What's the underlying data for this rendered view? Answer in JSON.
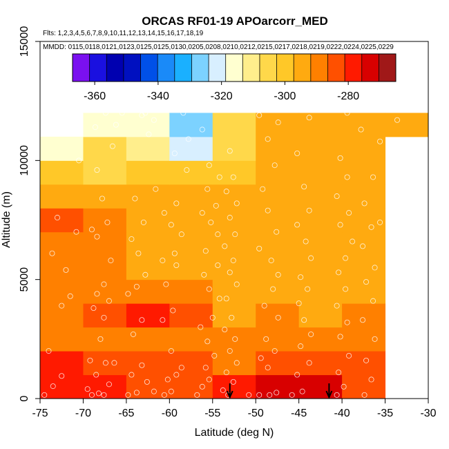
{
  "chart_data": {
    "type": "heatmap",
    "title": "ORCAS RF01-19 APOarcorr_MED",
    "flights_text": "Flts: 1,2,3,4,5,6,7,8,9,10,11,12,13,14,15,16,17,18,19",
    "dates_text": "MMDD: 0115,0118,0121,0123,0125,0125,0130,0205,0208,0210,0212,0215,0217,0218,0219,0222,0224,0225,0229",
    "xlabel": "Latitude (deg N)",
    "ylabel": "Altitude (m)",
    "xlim": [
      -75,
      -30
    ],
    "ylim": [
      0,
      15000
    ],
    "x_ticks": [
      -75,
      -70,
      -65,
      -60,
      -55,
      -50,
      -45,
      -40,
      -35,
      -30
    ],
    "y_ticks": [
      0,
      5000,
      10000,
      15000
    ],
    "colorbar": {
      "range": [
        -367,
        -265
      ],
      "ticks": [
        -360,
        -340,
        -320,
        -300,
        -280
      ],
      "colors": [
        "#7a10f0",
        "#1a10e0",
        "#0000b0",
        "#0010c0",
        "#0050e8",
        "#1a8af8",
        "#1ab0ff",
        "#7cd2ff",
        "#d8efff",
        "#ffffd0",
        "#ffee8c",
        "#ffd84a",
        "#ffc828",
        "#ffaa10",
        "#ff8000",
        "#ff5000",
        "#ff1a00",
        "#d80000",
        "#a01818"
      ]
    },
    "lat_edges": [
      -75,
      -70,
      -65,
      -60,
      -55,
      -50,
      -45,
      -40,
      -35,
      -30
    ],
    "alt_edges": [
      0,
      1000,
      2000,
      3000,
      4000,
      5000,
      6000,
      7000,
      8000,
      9000,
      10000,
      11000,
      12000
    ],
    "cells": [
      [
        -280,
        -280,
        -283,
        -285,
        -276,
        -273,
        -275,
        -284,
        null
      ],
      [
        -279,
        -283,
        -284,
        -285,
        -287,
        -285,
        -286,
        -286,
        null
      ],
      [
        -289,
        -289,
        -288,
        -289,
        -288,
        -288,
        -289,
        -289,
        null
      ],
      [
        -288,
        -285,
        -279,
        -284,
        -292,
        -290,
        -292,
        -289,
        null
      ],
      [
        -289,
        -290,
        -291,
        -291,
        -292,
        -294,
        -294,
        -294,
        null
      ],
      [
        -290,
        -291,
        -292,
        -292,
        -293,
        -294,
        -294,
        -294,
        null
      ],
      [
        -290,
        -291,
        -292,
        -292,
        -294,
        -294,
        -294,
        -294,
        null
      ],
      [
        -285,
        -291,
        -292,
        -293,
        -295,
        -294,
        -294,
        -292,
        null
      ],
      [
        -292,
        -293,
        -294,
        -294,
        -296,
        -294,
        -294,
        -294,
        null
      ],
      [
        -301,
        -304,
        -298,
        -298,
        -298,
        -294,
        -292,
        -294,
        null
      ],
      [
        -316,
        -304,
        -310,
        -320,
        -305,
        -292,
        -293,
        -294,
        null
      ],
      [
        null,
        -316,
        -316,
        -325,
        -305,
        -294,
        -294,
        -294,
        -294
      ]
    ],
    "arrows_lat": [
      -53,
      -41.5
    ],
    "points": [
      [
        -74.5,
        150
      ],
      [
        -73.5,
        520
      ],
      [
        -72.5,
        950
      ],
      [
        -74,
        2000
      ],
      [
        -72.5,
        3900
      ],
      [
        -71.5,
        4300
      ],
      [
        -72,
        5400
      ],
      [
        -73.6,
        6100
      ],
      [
        -70.8,
        7000
      ],
      [
        -73,
        7600
      ],
      [
        -70.5,
        10000
      ],
      [
        -69.5,
        400
      ],
      [
        -69,
        150
      ],
      [
        -68.2,
        220
      ],
      [
        -67.6,
        150
      ],
      [
        -67,
        600
      ],
      [
        -68.5,
        1000
      ],
      [
        -69.2,
        1600
      ],
      [
        -67.4,
        1500
      ],
      [
        -66.4,
        1500
      ],
      [
        -68,
        2500
      ],
      [
        -67.6,
        3400
      ],
      [
        -68.8,
        3800
      ],
      [
        -67,
        4100
      ],
      [
        -68.4,
        4400
      ],
      [
        -67.6,
        4800
      ],
      [
        -66.8,
        5800
      ],
      [
        -68.4,
        6800
      ],
      [
        -69,
        7100
      ],
      [
        -67.2,
        7400
      ],
      [
        -67.8,
        8400
      ],
      [
        -68.4,
        9600
      ],
      [
        -66.6,
        10600
      ],
      [
        -67.4,
        12000
      ],
      [
        -68.6,
        11400
      ],
      [
        -66.2,
        11500
      ],
      [
        -64.8,
        150
      ],
      [
        -63.8,
        250
      ],
      [
        -64.4,
        1000
      ],
      [
        -63.2,
        1400
      ],
      [
        -62.6,
        700
      ],
      [
        -61.8,
        300
      ],
      [
        -64.2,
        2700
      ],
      [
        -63.2,
        3300
      ],
      [
        -64.8,
        4400
      ],
      [
        -63.8,
        4700
      ],
      [
        -62.8,
        5200
      ],
      [
        -63.6,
        6100
      ],
      [
        -64.4,
        6700
      ],
      [
        -63,
        7400
      ],
      [
        -64,
        8400
      ],
      [
        -61.6,
        8800
      ],
      [
        -62.4,
        11100
      ],
      [
        -61.8,
        11700
      ],
      [
        -63.2,
        11900
      ],
      [
        -62.8,
        12000
      ],
      [
        -65.5,
        12000
      ],
      [
        -60.6,
        150
      ],
      [
        -59.8,
        300
      ],
      [
        -60.2,
        800
      ],
      [
        -59.2,
        1000
      ],
      [
        -58.6,
        1300
      ],
      [
        -59.8,
        2000
      ],
      [
        -60.8,
        3300
      ],
      [
        -59.6,
        3700
      ],
      [
        -60.4,
        4800
      ],
      [
        -59.2,
        5600
      ],
      [
        -60.8,
        5800
      ],
      [
        -59.4,
        6100
      ],
      [
        -58.6,
        6900
      ],
      [
        -59.8,
        7300
      ],
      [
        -60.6,
        7800
      ],
      [
        -59.2,
        8200
      ],
      [
        -58,
        9600
      ],
      [
        -59.4,
        10300
      ],
      [
        -57.8,
        10900
      ],
      [
        -58.4,
        12000
      ],
      [
        -56.8,
        150
      ],
      [
        -56.2,
        500
      ],
      [
        -55.4,
        800
      ],
      [
        -55.8,
        1300
      ],
      [
        -54.8,
        1800
      ],
      [
        -55.6,
        2400
      ],
      [
        -56.4,
        3000
      ],
      [
        -55,
        3400
      ],
      [
        -54.2,
        4200
      ],
      [
        -55.4,
        4600
      ],
      [
        -56,
        5200
      ],
      [
        -54.4,
        5600
      ],
      [
        -55.8,
        6200
      ],
      [
        -54.4,
        6900
      ],
      [
        -55.2,
        7400
      ],
      [
        -56.2,
        7800
      ],
      [
        -54.6,
        8100
      ],
      [
        -55.6,
        8800
      ],
      [
        -54.2,
        9300
      ],
      [
        -55.4,
        9800
      ],
      [
        -56.2,
        11300
      ],
      [
        -53.8,
        350
      ],
      [
        -53.2,
        150
      ],
      [
        -52.6,
        700
      ],
      [
        -53.4,
        1100
      ],
      [
        -52.2,
        1500
      ],
      [
        -53,
        2000
      ],
      [
        -52.4,
        2500
      ],
      [
        -53.6,
        2900
      ],
      [
        -52.8,
        3400
      ],
      [
        -53.4,
        4200
      ],
      [
        -52.2,
        4800
      ],
      [
        -53,
        5300
      ],
      [
        -52.6,
        5800
      ],
      [
        -53.6,
        6400
      ],
      [
        -52.4,
        6900
      ],
      [
        -53,
        7600
      ],
      [
        -52.2,
        8200
      ],
      [
        -53.4,
        8700
      ],
      [
        -52.6,
        9300
      ],
      [
        -53,
        10400
      ],
      [
        -50.8,
        150
      ],
      [
        -49.6,
        150
      ],
      [
        -48.4,
        150
      ],
      [
        -47.6,
        250
      ],
      [
        -49.4,
        1700
      ],
      [
        -48.6,
        1300
      ],
      [
        -47.8,
        2000
      ],
      [
        -48.8,
        2500
      ],
      [
        -47.4,
        3400
      ],
      [
        -49,
        3900
      ],
      [
        -48,
        4600
      ],
      [
        -47.4,
        5200
      ],
      [
        -48.2,
        5800
      ],
      [
        -49.6,
        6300
      ],
      [
        -47.6,
        7000
      ],
      [
        -48.6,
        7900
      ],
      [
        -49.2,
        8800
      ],
      [
        -47.8,
        9800
      ],
      [
        -48.6,
        10900
      ],
      [
        -47.4,
        11600
      ],
      [
        -49.6,
        11900
      ],
      [
        -45.8,
        150
      ],
      [
        -44.6,
        300
      ],
      [
        -45.2,
        1000
      ],
      [
        -43.8,
        1500
      ],
      [
        -44.8,
        2200
      ],
      [
        -43.6,
        2700
      ],
      [
        -44.4,
        3300
      ],
      [
        -45,
        4000
      ],
      [
        -44,
        4600
      ],
      [
        -44.8,
        5100
      ],
      [
        -43.6,
        5900
      ],
      [
        -44.2,
        6600
      ],
      [
        -45.2,
        7300
      ],
      [
        -43.8,
        7900
      ],
      [
        -44.4,
        8900
      ],
      [
        -45.2,
        10300
      ],
      [
        -43.8,
        11800
      ],
      [
        -40.6,
        150
      ],
      [
        -39.8,
        500
      ],
      [
        -40.4,
        1100
      ],
      [
        -39.2,
        1800
      ],
      [
        -40.2,
        2600
      ],
      [
        -39.4,
        3200
      ],
      [
        -40.6,
        3900
      ],
      [
        -39.6,
        4600
      ],
      [
        -40.4,
        5300
      ],
      [
        -39.6,
        5900
      ],
      [
        -38.8,
        6600
      ],
      [
        -40.2,
        7300
      ],
      [
        -39.2,
        7800
      ],
      [
        -40.6,
        8500
      ],
      [
        -39.4,
        9300
      ],
      [
        -40.2,
        10100
      ],
      [
        -39.4,
        12000
      ],
      [
        -37.4,
        150
      ],
      [
        -36.6,
        800
      ],
      [
        -37.2,
        1600
      ],
      [
        -36.2,
        2500
      ],
      [
        -37.6,
        3300
      ],
      [
        -36.4,
        4100
      ],
      [
        -37.2,
        4900
      ],
      [
        -36.2,
        5500
      ],
      [
        -37.6,
        6400
      ],
      [
        -36.6,
        7200
      ],
      [
        -35.6,
        7400
      ],
      [
        -37.4,
        8200
      ],
      [
        -36.4,
        9300
      ],
      [
        -35.6,
        10800
      ],
      [
        -33.6,
        11700
      ],
      [
        -37.8,
        11300
      ]
    ]
  }
}
